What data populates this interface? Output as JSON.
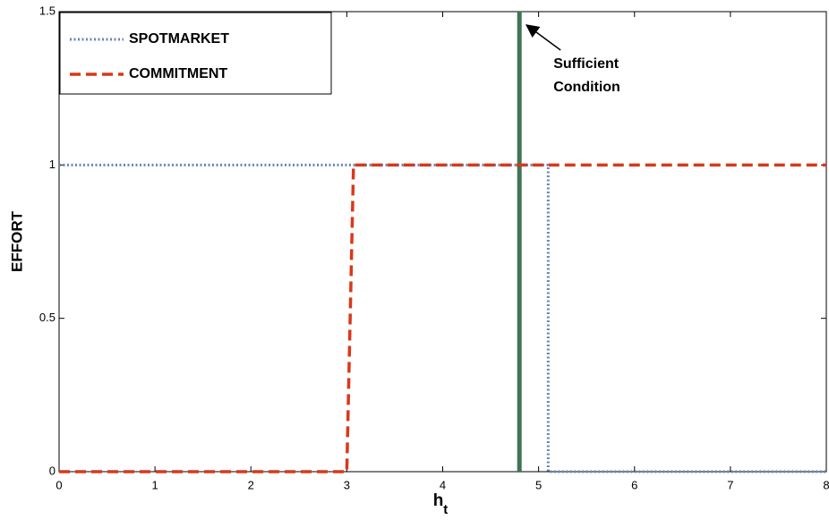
{
  "chart_data": {
    "type": "line",
    "xlabel": {
      "text": "h",
      "subscript": "t"
    },
    "ylabel": "EFFORT",
    "series": [
      {
        "name": "SPOTMARKET",
        "color": "#6a86b6",
        "style": "dotted",
        "x": [
          0,
          5.1,
          5.1,
          8
        ],
        "values": [
          1,
          1,
          0,
          0
        ]
      },
      {
        "name": "COMMITMENT",
        "color": "#d8391a",
        "style": "dashed",
        "x": [
          0,
          3,
          3.07,
          8
        ],
        "values": [
          0,
          0,
          1,
          1
        ]
      }
    ],
    "vline": {
      "x": 4.8,
      "color": "#3f7454"
    },
    "annotation": [
      "Sufficient",
      "Condition"
    ],
    "xlim": [
      0,
      8
    ],
    "ylim": [
      0,
      1.5
    ],
    "xticks": [
      0,
      1,
      2,
      3,
      4,
      5,
      6,
      7,
      8
    ],
    "yticks": [
      0,
      0.5,
      1,
      1.5
    ],
    "legend": "upper left"
  }
}
